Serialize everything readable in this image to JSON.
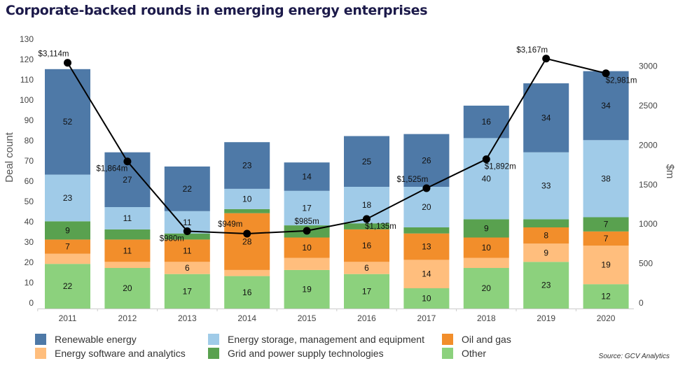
{
  "chart_data": {
    "type": "bar",
    "stacked": true,
    "title": "Corporate-backed rounds in emerging energy enterprises",
    "categories": [
      "2011",
      "2012",
      "2013",
      "2014",
      "2015",
      "2016",
      "2017",
      "2018",
      "2019",
      "2020"
    ],
    "ylabel": "Deal count",
    "ylim": [
      0,
      130
    ],
    "yticks": [
      0,
      10,
      20,
      30,
      40,
      50,
      60,
      70,
      80,
      90,
      100,
      110,
      120,
      130
    ],
    "y2label": "$m",
    "y2lim": [
      0,
      3000
    ],
    "y2ticks": [
      0,
      500,
      1000,
      1500,
      2000,
      2500,
      3000
    ],
    "grid": false,
    "legend_position": "bottom",
    "series": [
      {
        "name": "Other",
        "color": "#8cd17d",
        "values": [
          22,
          20,
          17,
          16,
          19,
          17,
          10,
          20,
          23,
          12
        ],
        "labeled": [
          true,
          true,
          true,
          true,
          true,
          true,
          true,
          true,
          true,
          true
        ]
      },
      {
        "name": "Energy software and analytics",
        "color": "#ffbe7d",
        "values": [
          5,
          3,
          6,
          3,
          6,
          6,
          14,
          5,
          9,
          19
        ],
        "labeled": [
          false,
          false,
          true,
          false,
          false,
          true,
          true,
          false,
          true,
          true
        ]
      },
      {
        "name": "Oil and gas",
        "color": "#f28e2b",
        "values": [
          7,
          11,
          11,
          28,
          10,
          16,
          13,
          10,
          8,
          7
        ],
        "labeled": [
          true,
          true,
          true,
          true,
          true,
          true,
          true,
          true,
          true,
          true
        ]
      },
      {
        "name": "Grid and power supply technologies",
        "color": "#59a14f",
        "values": [
          9,
          5,
          3,
          2,
          6,
          3,
          3,
          9,
          4,
          7
        ],
        "labeled": [
          true,
          false,
          false,
          false,
          false,
          false,
          false,
          true,
          false,
          true
        ]
      },
      {
        "name": "Energy storage, management and equipment",
        "color": "#a0cbe8",
        "values": [
          23,
          11,
          11,
          10,
          17,
          18,
          20,
          40,
          33,
          38
        ],
        "labeled": [
          true,
          true,
          true,
          true,
          true,
          true,
          true,
          true,
          true,
          true
        ]
      },
      {
        "name": "Renewable energy",
        "color": "#4e79a7",
        "values": [
          52,
          27,
          22,
          23,
          14,
          25,
          26,
          16,
          34,
          34
        ],
        "labeled": [
          true,
          true,
          true,
          true,
          true,
          true,
          true,
          true,
          true,
          true
        ]
      }
    ],
    "line": {
      "axis": "right",
      "color": "#000000",
      "values": [
        3114,
        1864,
        980,
        949,
        985,
        1135,
        1525,
        1892,
        3167,
        2981
      ],
      "labels": [
        "$3,114m",
        "$1,864m",
        "$980m",
        "$949m",
        "$985m",
        "$1,135m",
        "$1,525m",
        "$1,892m",
        "$3,167m",
        "$2,981m"
      ]
    }
  },
  "legend": [
    {
      "label": "Renewable energy",
      "color": "#4e79a7"
    },
    {
      "label": "Energy storage, management and equipment",
      "color": "#a0cbe8"
    },
    {
      "label": "Oil and gas",
      "color": "#f28e2b"
    },
    {
      "label": "Energy software and analytics",
      "color": "#ffbe7d"
    },
    {
      "label": "Grid and power supply technologies",
      "color": "#59a14f"
    },
    {
      "label": "Other",
      "color": "#8cd17d"
    }
  ],
  "source": "Source: GCV Analytics"
}
